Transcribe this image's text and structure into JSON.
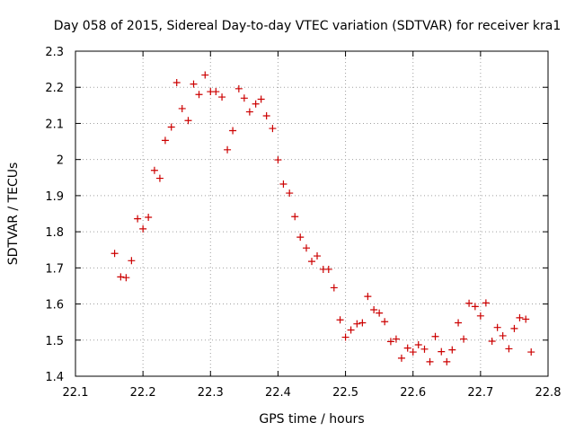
{
  "chart_data": {
    "type": "scatter",
    "title": "Day 058 of 2015, Sidereal Day-to-day VTEC variation (SDTVAR) for receiver kra1",
    "xlabel": "GPS time / hours",
    "ylabel": "SDTVAR / TECUs",
    "xlim": [
      22.1,
      22.8
    ],
    "ylim": [
      1.4,
      2.3
    ],
    "xticks": [
      "22.1",
      "22.2",
      "22.3",
      "22.4",
      "22.5",
      "22.6",
      "22.7",
      "22.8"
    ],
    "yticks": [
      "1.4",
      "1.5",
      "1.6",
      "1.7",
      "1.8",
      "1.9",
      "2",
      "2.1",
      "2.2",
      "2.3"
    ],
    "grid": true,
    "marker": "+",
    "marker_color": "#cc0000",
    "series": [
      {
        "name": "SDTVAR",
        "x": [
          22.158,
          22.167,
          22.175,
          22.183,
          22.192,
          22.2,
          22.208,
          22.217,
          22.225,
          22.233,
          22.242,
          22.25,
          22.258,
          22.267,
          22.275,
          22.283,
          22.292,
          22.3,
          22.308,
          22.317,
          22.325,
          22.333,
          22.342,
          22.35,
          22.358,
          22.367,
          22.375,
          22.383,
          22.392,
          22.4,
          22.408,
          22.417,
          22.425,
          22.433,
          22.442,
          22.45,
          22.458,
          22.467,
          22.475,
          22.483,
          22.492,
          22.5,
          22.508,
          22.517,
          22.525,
          22.533,
          22.542,
          22.55,
          22.558,
          22.567,
          22.575,
          22.583,
          22.592,
          22.6,
          22.608,
          22.617,
          22.625,
          22.633,
          22.642,
          22.65,
          22.658,
          22.667,
          22.675,
          22.683,
          22.692,
          22.7,
          22.708,
          22.717,
          22.725,
          22.733,
          22.742,
          22.75,
          22.758,
          22.767,
          22.775
        ],
        "y": [
          1.74,
          1.675,
          1.673,
          1.72,
          1.836,
          1.808,
          1.84,
          1.97,
          1.948,
          2.053,
          2.09,
          2.213,
          2.141,
          2.108,
          2.209,
          2.18,
          2.234,
          2.188,
          2.188,
          2.173,
          2.027,
          2.08,
          2.196,
          2.17,
          2.132,
          2.154,
          2.167,
          2.121,
          2.086,
          1.999,
          1.932,
          1.907,
          1.842,
          1.785,
          1.755,
          1.718,
          1.733,
          1.696,
          1.696,
          1.645,
          1.556,
          1.508,
          1.528,
          1.545,
          1.548,
          1.621,
          1.584,
          1.575,
          1.551,
          1.496,
          1.503,
          1.45,
          1.478,
          1.467,
          1.487,
          1.475,
          1.44,
          1.51,
          1.468,
          1.44,
          1.473,
          1.548,
          1.503,
          1.602,
          1.593,
          1.567,
          1.603,
          1.497,
          1.535,
          1.512,
          1.476,
          1.532,
          1.562,
          1.558,
          1.467
        ]
      }
    ]
  }
}
